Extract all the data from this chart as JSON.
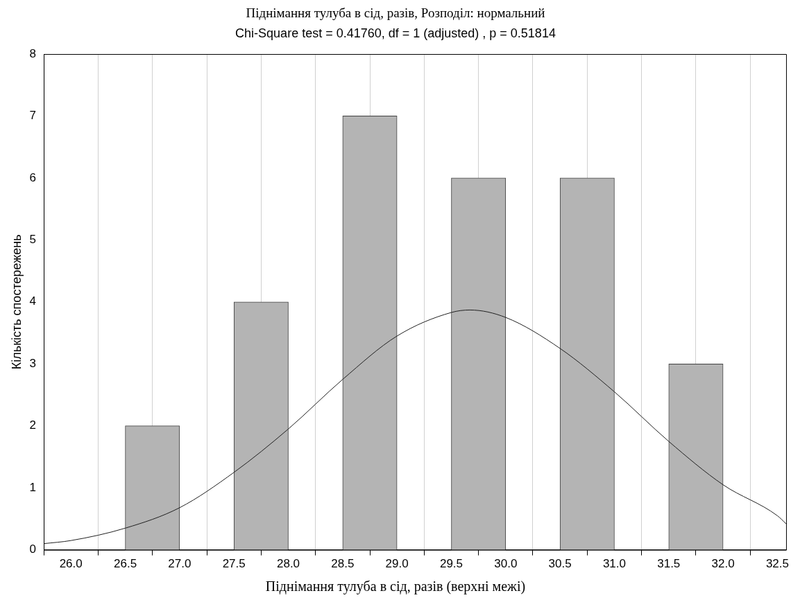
{
  "chart_data": {
    "type": "histogram",
    "title": "Піднімання тулуба в сід, разів, Розподіл: нормальний",
    "subtitle": "Chi-Square test = 0.41760, df = 1 (adjusted) , p = 0.51814",
    "xlabel": "Піднімання тулуба в сід, разів (верхні межі)",
    "ylabel": "Кількість спостережень",
    "bins": [
      26.5,
      27.0,
      27.5,
      28.0,
      28.5,
      29.0,
      29.5,
      30.0,
      30.5,
      31.0,
      31.5,
      32.0
    ],
    "values": [
      2,
      0,
      4,
      0,
      7,
      0,
      6,
      0,
      6,
      0,
      3
    ],
    "color": "#b4b4b4",
    "series": [
      {
        "type": "line",
        "color": "#202020",
        "x": [
          25.75,
          26.0,
          26.5,
          27.0,
          27.5,
          28.0,
          28.5,
          29.0,
          29.5,
          29.67,
          30.0,
          30.5,
          31.0,
          31.5,
          32.0,
          32.5,
          32.58
        ],
        "values": [
          0.1,
          0.15,
          0.35,
          0.68,
          1.25,
          1.95,
          2.75,
          3.45,
          3.83,
          3.87,
          3.75,
          3.25,
          2.55,
          1.75,
          1.05,
          0.55,
          0.42
        ]
      }
    ],
    "xlim": [
      25.75,
      32.58
    ],
    "xticks": [
      {
        "value": 26,
        "label": "26.0"
      },
      26.5,
      {
        "value": 27,
        "label": "27.0"
      },
      27.5,
      {
        "value": 28,
        "label": "28.0"
      },
      28.5,
      {
        "value": 29,
        "label": "29.0"
      },
      29.5,
      {
        "value": 30,
        "label": "30.0"
      },
      30.5,
      {
        "value": 31,
        "label": "31.0"
      },
      31.5,
      {
        "value": 32,
        "label": "32.0"
      },
      32.5
    ],
    "ylim": [
      0,
      8
    ],
    "yticks": [
      0,
      1,
      2,
      3,
      4,
      5,
      6,
      7,
      8
    ],
    "grid": "x",
    "legend": false,
    "marker": "none",
    "line_style": "solid"
  }
}
